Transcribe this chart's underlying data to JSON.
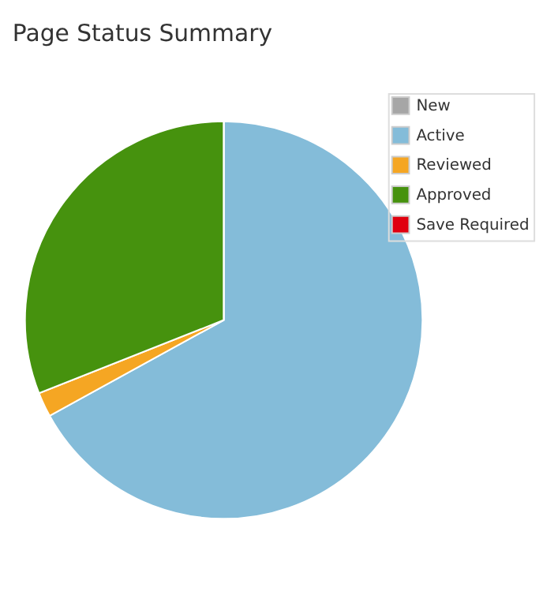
{
  "chart_data": {
    "type": "pie",
    "title": "Page Status Summary",
    "categories": [
      "New",
      "Active",
      "Reviewed",
      "Approved",
      "Save Required"
    ],
    "values": [
      0,
      67,
      2,
      31,
      0
    ],
    "colors": [
      "#a6a6a6",
      "#84bcd9",
      "#f5a623",
      "#46920e",
      "#e0000f"
    ],
    "legend": "right"
  }
}
